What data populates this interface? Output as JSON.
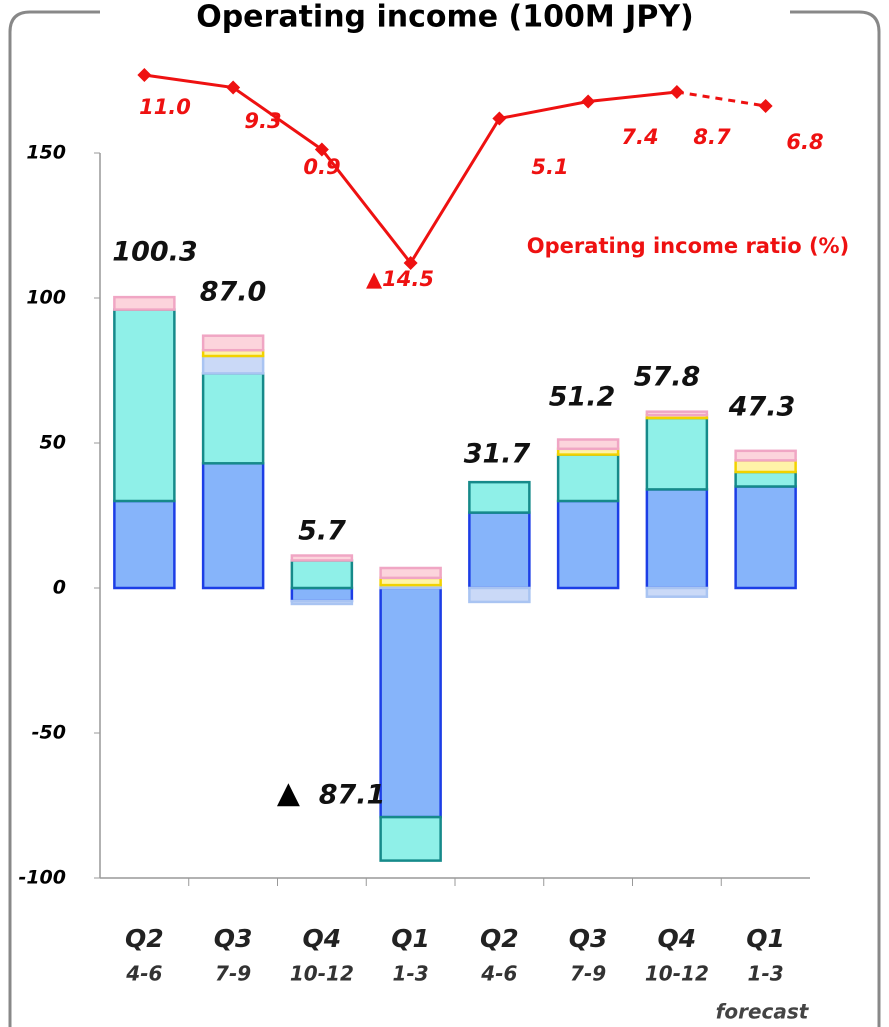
{
  "chart_data": {
    "type": "bar",
    "stacked": true,
    "title": "Operating income (100M JPY)",
    "categories": [
      "Q2",
      "Q3",
      "Q4",
      "Q1",
      "Q2",
      "Q3",
      "Q4",
      "Q1"
    ],
    "periods": [
      "4-6",
      "7-9",
      "10-12",
      "1-3",
      "4-6",
      "7-9",
      "10-12",
      "1-3"
    ],
    "forecast_label": "forecast",
    "ylim": [
      -100,
      150
    ],
    "yticks": [
      -100,
      -50,
      0,
      50,
      100,
      150
    ],
    "series": [
      {
        "color": "#86b4fa",
        "edge_color": "#1c3ee6",
        "values": [
          30,
          43,
          -4.5,
          -79,
          26,
          30,
          34,
          35
        ]
      },
      {
        "color": "#8ff0e8",
        "edge_color": "#168a8a",
        "values": [
          66,
          31,
          9.5,
          -15,
          10.5,
          16,
          24.6,
          5
        ]
      },
      {
        "color": "#cad9f7",
        "edge_color": "#a9c4f2",
        "values": [
          0,
          6,
          -1,
          1,
          -4.8,
          0,
          -3,
          0
        ]
      },
      {
        "color": "#fff3a8",
        "edge_color": "#f2d200",
        "values": [
          0,
          2,
          0,
          2.5,
          0,
          2,
          1,
          4
        ]
      },
      {
        "color": "#fcd4dc",
        "edge_color": "#f0a6c4",
        "values": [
          4.3,
          5,
          1.7,
          3.4,
          0,
          3.2,
          1.2,
          3.3
        ]
      }
    ],
    "totals": {
      "values": [
        100.3,
        87.0,
        5.7,
        -87.1,
        31.7,
        51.2,
        57.8,
        47.3
      ],
      "value_labels": [
        "100.3",
        "87.0",
        "5.7",
        "87.1",
        "31.7",
        "51.2",
        "57.8",
        "47.3"
      ],
      "negative_marker": "▲"
    },
    "line": {
      "type": "line",
      "name": "Operating income ratio (%)",
      "color": "#ee1111",
      "forecast_dashed": true,
      "values": [
        11.0,
        9.3,
        0.9,
        -14.5,
        5.1,
        7.4,
        8.7,
        6.8
      ],
      "value_labels": [
        "11.0",
        "9.3",
        "0.9",
        "▲14.5",
        "5.1",
        "7.4",
        "8.7",
        "6.8"
      ]
    }
  }
}
